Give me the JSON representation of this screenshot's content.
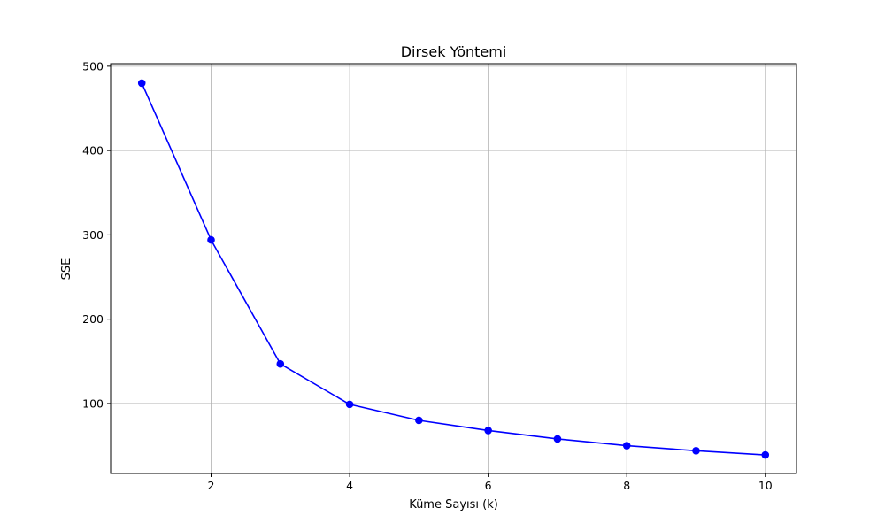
{
  "chart_data": {
    "type": "line",
    "title": "Dirsek Yöntemi",
    "xlabel": "Küme Sayısı (k)",
    "ylabel": "SSE",
    "x": [
      1,
      2,
      3,
      4,
      5,
      6,
      7,
      8,
      9,
      10
    ],
    "series": [
      {
        "values": [
          480,
          294,
          147,
          99,
          80,
          68,
          58,
          50,
          44,
          39
        ],
        "color": "#0000ff",
        "marker": "circle"
      }
    ],
    "xlim": [
      0.55,
      10.45
    ],
    "ylim": [
      17,
      503
    ],
    "xticks": [
      2,
      4,
      6,
      8,
      10
    ],
    "yticks": [
      100,
      200,
      300,
      400,
      500
    ],
    "grid": true,
    "grid_color": "#b0b0b0"
  }
}
